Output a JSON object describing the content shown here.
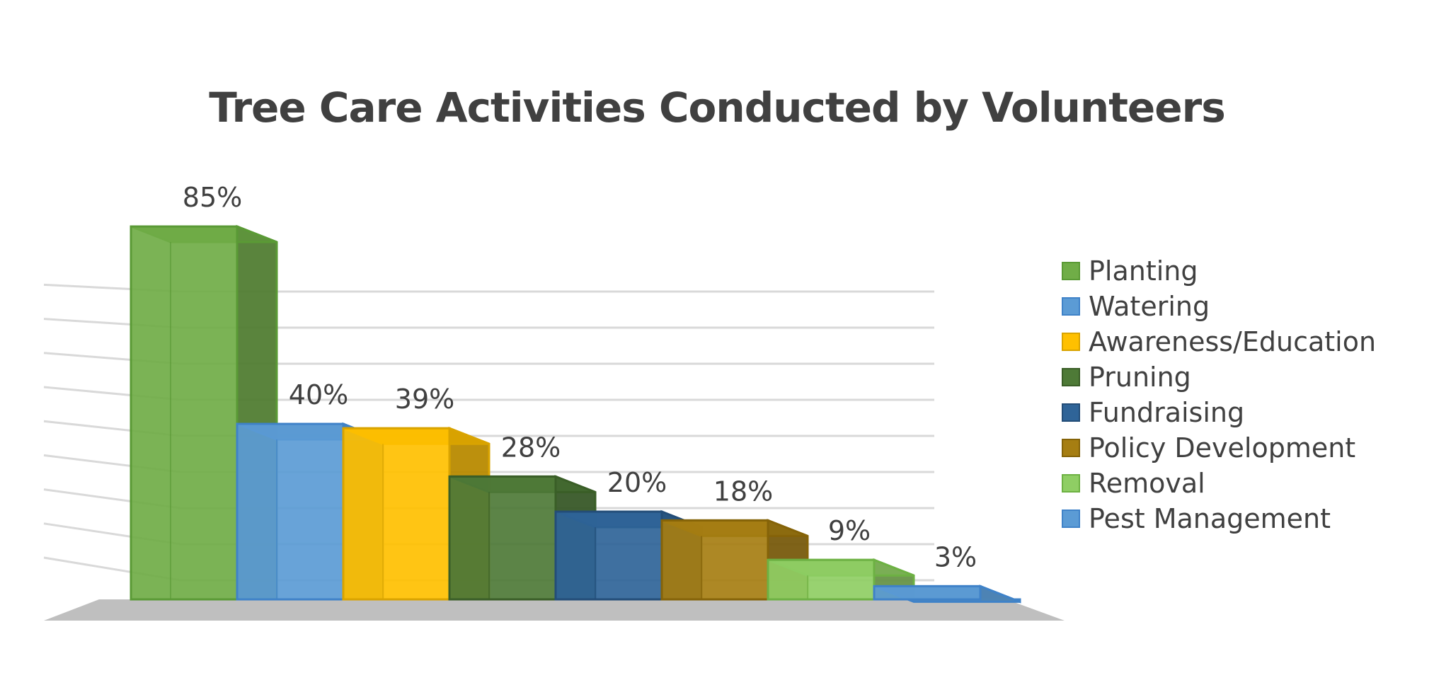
{
  "chart_data": {
    "type": "bar",
    "title": "Tree Care Activities Conducted by Volunteers",
    "categories": [
      "Planting",
      "Watering",
      "Awareness/Education",
      "Pruning",
      "Fundraising",
      "Policy Development",
      "Removal",
      "Pest Management"
    ],
    "values": [
      85,
      40,
      39,
      28,
      20,
      18,
      9,
      3
    ],
    "data_labels": [
      "85%",
      "40%",
      "39%",
      "28%",
      "20%",
      "18%",
      "9%",
      "3%"
    ],
    "unit": "%",
    "ylim": [
      0,
      80
    ],
    "grid": true,
    "three_d": true,
    "legend_position": "right",
    "colors": [
      "#70ad47",
      "#5b9bd5",
      "#ffc000",
      "#4e7a37",
      "#2f6498",
      "#a67e12",
      "#8fce64",
      "#5b9bd5"
    ],
    "edge_colors": [
      "#5a9a35",
      "#3f82c8",
      "#d9a300",
      "#3a5e27",
      "#234d78",
      "#856308",
      "#6db143",
      "#3f82c8"
    ]
  }
}
